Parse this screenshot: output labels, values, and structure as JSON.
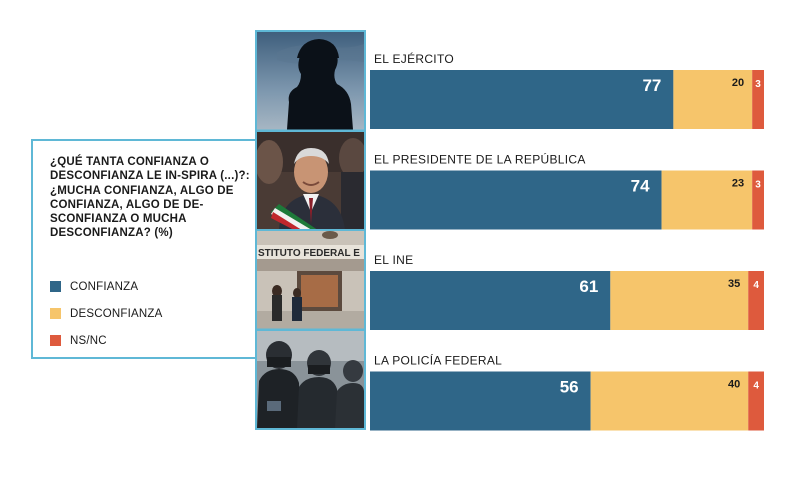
{
  "question": "¿QUÉ TANTA CONFIANZA O DESCONFIANZA LE IN-SPIRA (...)?: ¿MUCHA CONFIANZA, ALGO DE CONFIANZA, ALGO DE DE-SCONFIANZA O MUCHA DESCONFIANZA? (%)",
  "legend": [
    {
      "label": "CONFIANZA",
      "color": "#2f6688"
    },
    {
      "label": "DESCONFIANZA",
      "color": "#f6c56b"
    },
    {
      "label": "NS/NC",
      "color": "#de5a3d"
    }
  ],
  "photos": [
    {
      "subject": "soldier silhouette",
      "icon": "soldier-photo"
    },
    {
      "subject": "president portrait",
      "icon": "president-photo"
    },
    {
      "subject": "INE building",
      "text": "STITUTO FEDERAL E",
      "icon": "ine-building-photo"
    },
    {
      "subject": "federal police officers",
      "icon": "police-photo"
    }
  ],
  "chart_data": {
    "type": "bar",
    "orientation": "horizontal",
    "stacked": true,
    "categories": [
      "EL EJÉRCITO",
      "EL PRESIDENTE DE LA REPÚBLICA",
      "EL INE",
      "LA POLICÍA FEDERAL"
    ],
    "series": [
      {
        "name": "CONFIANZA",
        "values": [
          77,
          74,
          61,
          56
        ],
        "color": "#2f6688"
      },
      {
        "name": "DESCONFIANZA",
        "values": [
          20,
          23,
          35,
          40
        ],
        "color": "#f6c56b"
      },
      {
        "name": "NS/NC",
        "values": [
          3,
          3,
          4,
          4
        ],
        "color": "#de5a3d"
      }
    ],
    "xlim": [
      0,
      100
    ],
    "grid": false,
    "legend_position": "left"
  }
}
